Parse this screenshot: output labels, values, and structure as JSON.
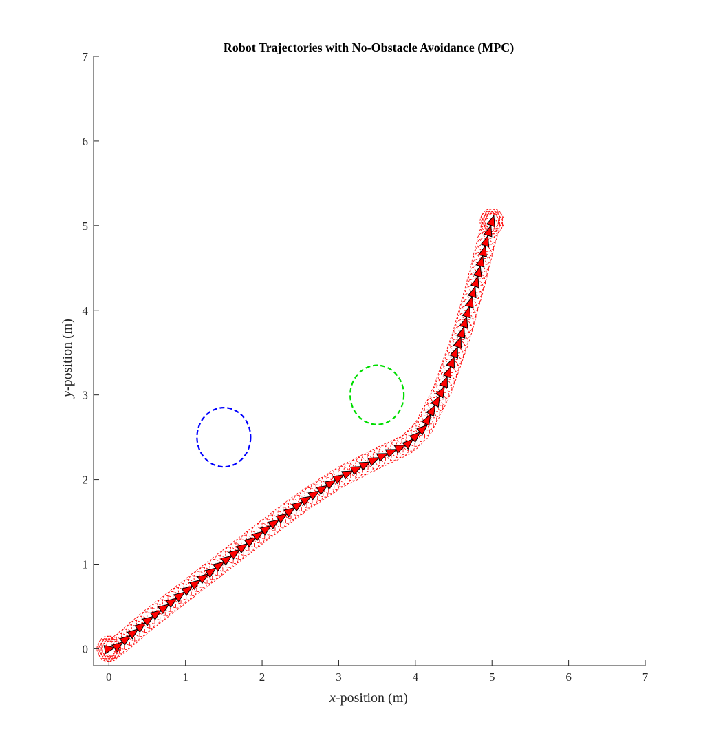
{
  "chart_data": {
    "type": "scatter",
    "title": "Robot Trajectories with No-Obstacle Avoidance (MPC)",
    "xlabel": {
      "var": "x",
      "rest": "-position (m)"
    },
    "ylabel": {
      "var": "y",
      "rest": "-position (m)"
    },
    "xlim": [
      -0.2,
      7
    ],
    "ylim": [
      -0.2,
      7
    ],
    "xticks": [
      0,
      1,
      2,
      3,
      4,
      5,
      6,
      7
    ],
    "yticks": [
      0,
      1,
      2,
      3,
      4,
      5,
      6,
      7
    ],
    "grid": false,
    "obstacles": [
      {
        "cx": 1.5,
        "cy": 2.5,
        "r": 0.35,
        "color": "#0000ff"
      },
      {
        "cx": 3.5,
        "cy": 3.0,
        "r": 0.35,
        "color": "#00dd00"
      }
    ],
    "trajectory": {
      "start": [
        0.0,
        0.0
      ],
      "goal": [
        5.0,
        5.05
      ],
      "path": [
        [
          0.0,
          0.0
        ],
        [
          0.1,
          0.02
        ],
        [
          0.5,
          0.33
        ],
        [
          1.0,
          0.68
        ],
        [
          1.5,
          1.03
        ],
        [
          2.0,
          1.38
        ],
        [
          2.5,
          1.72
        ],
        [
          3.0,
          2.02
        ],
        [
          3.5,
          2.25
        ],
        [
          3.9,
          2.42
        ],
        [
          4.1,
          2.6
        ],
        [
          4.35,
          3.05
        ],
        [
          4.6,
          3.7
        ],
        [
          4.8,
          4.35
        ],
        [
          4.92,
          4.8
        ],
        [
          5.0,
          5.05
        ]
      ],
      "marker_color": "#ff0000",
      "marker_edge": "#000000",
      "footprint_radius": 0.12,
      "footprint_color": "#ff0000"
    }
  }
}
